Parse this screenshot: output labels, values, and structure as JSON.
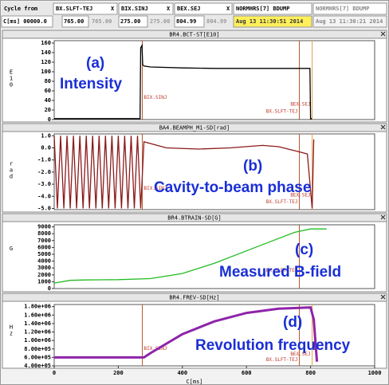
{
  "header": {
    "row1": [
      "Cycle from",
      "BX.SLFT-TEJ",
      "BIX.SINJ",
      "BEX.SEJ",
      "NORMHRS[7] BDUMP",
      "NORMHRS[7] BDUMP"
    ],
    "close": "X",
    "row2": [
      "C[ms] 00000.0",
      "765.00",
      "765.00",
      "275.00",
      "275.00",
      "804.99",
      "804.99",
      "Aug 13 11:30:51 2014",
      "Aug 13 11:30:21 2014"
    ]
  },
  "chart_data": [
    {
      "type": "line",
      "title": "BR4.BCT-ST[E10]",
      "y_label": "E10",
      "xlim": [
        0,
        1000
      ],
      "ylim": [
        0,
        165
      ],
      "yticks": [
        0,
        20,
        40,
        60,
        80,
        100,
        120,
        140,
        160
      ],
      "annotations": [
        "(a)",
        "Intensity"
      ],
      "markers": [
        {
          "label": "BIX.SINJ",
          "x": 275,
          "color": "#b5562a"
        },
        {
          "label": "BEX.SEJ",
          "x": 805,
          "color": "#e8a04a"
        },
        {
          "label": "BX.SLFT-TEJ",
          "x": 765,
          "color": "#b5562a"
        }
      ],
      "series": [
        {
          "color": "#000000",
          "x": [
            0,
            268,
            270,
            274,
            276,
            280,
            300,
            400,
            500,
            600,
            700,
            798,
            800,
            804
          ],
          "values": [
            2,
            2,
            150,
            155,
            115,
            112,
            110,
            108,
            107,
            107,
            107,
            107,
            2,
            2
          ]
        }
      ]
    },
    {
      "type": "line",
      "title": "BA4.BEAMPH_M1-SD[rad]",
      "y_label": "rad",
      "xlim": [
        0,
        1000
      ],
      "ylim": [
        -5.1,
        1.15
      ],
      "yticks": [
        {
          "value": 1,
          "label": "1.0"
        },
        {
          "value": 0,
          "label": "0.0"
        },
        {
          "value": -1,
          "label": "-1.0"
        },
        {
          "value": -2,
          "label": "-2.0"
        },
        {
          "value": -3,
          "label": "-3.0"
        },
        {
          "value": -4,
          "label": "-4.0"
        },
        {
          "value": -5,
          "label": "-5.0"
        }
      ],
      "annotations": [
        "(b)",
        "Cavity-to-beam phase"
      ],
      "markers": [
        {
          "label": "BIX.SINJ",
          "x": 275,
          "color": "#b5562a"
        },
        {
          "label": "BEX.SEJ",
          "x": 805,
          "color": "#e8a04a"
        },
        {
          "label": "BX.SLFT-TEJ",
          "x": 765,
          "color": "#b5562a"
        }
      ],
      "series": [
        {
          "color": "#8b1a1a",
          "x": [
            0,
            10,
            20,
            30,
            40,
            50,
            60,
            70,
            80,
            90,
            100,
            110,
            120,
            130,
            140,
            150,
            160,
            170,
            180,
            190,
            200,
            210,
            220,
            230,
            240,
            250,
            260,
            270,
            280,
            350,
            450,
            550,
            650,
            700,
            760,
            790,
            805,
            810
          ],
          "values": [
            1.0,
            -5.0,
            1.0,
            -5.0,
            1.0,
            -5.0,
            1.0,
            -5.0,
            1.0,
            -5.0,
            1.0,
            -5.0,
            1.0,
            -5.0,
            1.0,
            -5.0,
            1.0,
            -5.0,
            1.0,
            -5.0,
            1.0,
            -5.0,
            1.0,
            -5.0,
            1.0,
            -5.0,
            1.0,
            -5.0,
            0.5,
            0.0,
            -0.1,
            0.0,
            0.2,
            0.1,
            -0.3,
            -0.5,
            -5.0,
            0.7
          ]
        }
      ]
    },
    {
      "type": "line",
      "title": "BR4.BTRAIN-SD[G]",
      "y_label": "G",
      "xlim": [
        0,
        1000
      ],
      "ylim": [
        0,
        9300
      ],
      "yticks": [
        0,
        1000,
        2000,
        3000,
        4000,
        5000,
        6000,
        7000,
        8000,
        9000
      ],
      "annotations": [
        "(c)",
        "Measured B-field"
      ],
      "markers": [
        {
          "label": "BX.SLFT-TEJ",
          "x": 765,
          "color": "#b5562a"
        }
      ],
      "series": [
        {
          "color": "#22bb22",
          "x": [
            0,
            50,
            100,
            200,
            300,
            400,
            500,
            600,
            700,
            750,
            800,
            850
          ],
          "values": [
            800,
            1200,
            1250,
            1300,
            1450,
            2200,
            3700,
            5500,
            7300,
            8200,
            8700,
            8700
          ]
        }
      ]
    },
    {
      "type": "line",
      "title": "BR4.FREV-SD[Hz]",
      "y_label": "Hz",
      "x_label": "C[ms]",
      "xlim": [
        0,
        1000
      ],
      "ylim": [
        400000,
        1850000
      ],
      "xticks": [
        0,
        200,
        400,
        600,
        800,
        1000
      ],
      "yticks": [
        {
          "value": 400000,
          "label": "4.00e+05"
        },
        {
          "value": 600000,
          "label": "6.00e+05"
        },
        {
          "value": 800000,
          "label": "8.00e+05"
        },
        {
          "value": 1000000,
          "label": "1.00e+06"
        },
        {
          "value": 1200000,
          "label": "1.20e+06"
        },
        {
          "value": 1400000,
          "label": "1.40e+06"
        },
        {
          "value": 1600000,
          "label": "1.60e+06"
        },
        {
          "value": 1800000,
          "label": "1.80e+06"
        }
      ],
      "annotations": [
        "(d)",
        "Revolution frequency"
      ],
      "markers": [
        {
          "label": "BIX.SINJ",
          "x": 275,
          "color": "#b5562a"
        },
        {
          "label": "BEX.SEJ",
          "x": 805,
          "color": "#e8a04a"
        },
        {
          "label": "BX.SLFT-TEJ",
          "x": 765,
          "color": "#b5562a"
        }
      ],
      "series": [
        {
          "color": "#8e24aa",
          "x": [
            0,
            280,
            300,
            400,
            500,
            600,
            700,
            800,
            810,
            820
          ],
          "values": [
            600000,
            600000,
            700000,
            1150000,
            1450000,
            1650000,
            1750000,
            1780000,
            1500000,
            500000
          ]
        }
      ]
    }
  ]
}
